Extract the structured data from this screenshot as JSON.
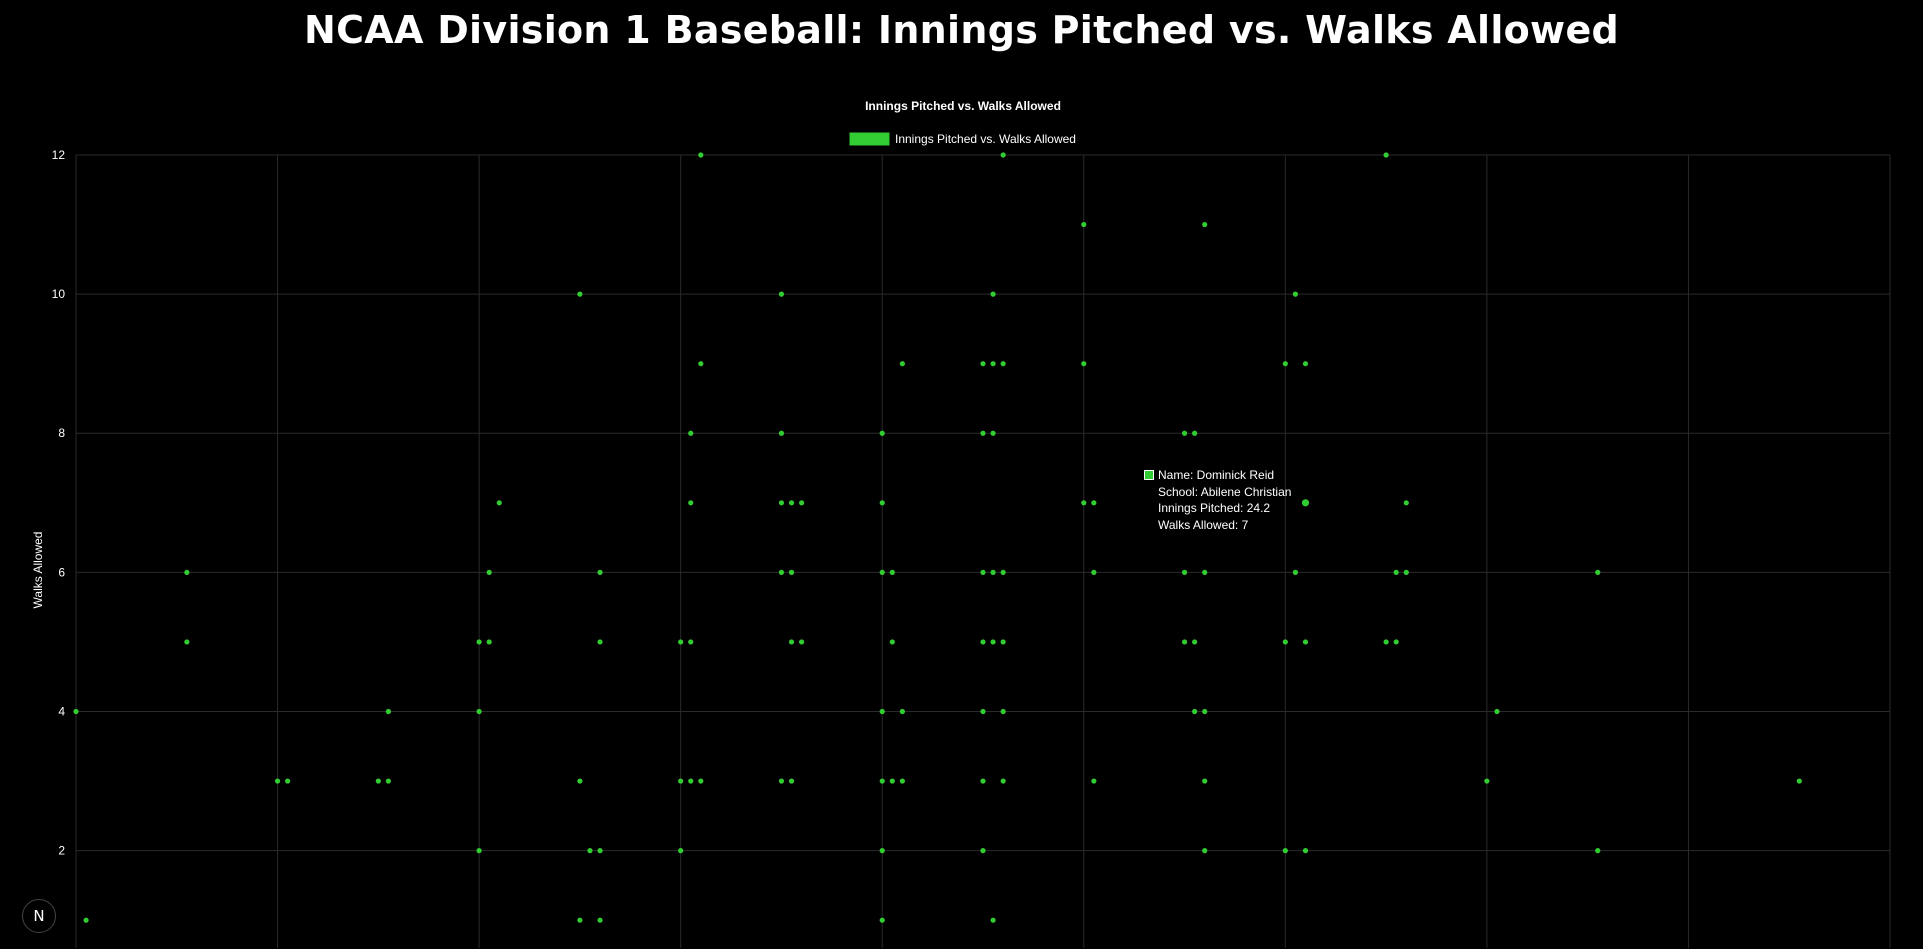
{
  "page": {
    "title": "NCAA Division 1 Baseball: Innings Pitched vs. Walks Allowed"
  },
  "badge": {
    "label": "N",
    "icon": "nextjs-logo-icon"
  },
  "colors": {
    "background": "#000000",
    "point": "#32cd32",
    "grid": "#2a2a2a",
    "text": "#ffffff"
  },
  "tooltip": {
    "name_line": "Name: Dominick Reid",
    "school_line": "School: Abilene Christian",
    "innings_line": "Innings Pitched: 24.2",
    "walks_line": "Walks Allowed: 7"
  },
  "chart_data": {
    "type": "scatter",
    "title": "Innings Pitched vs. Walks Allowed",
    "legend": {
      "label": "Innings Pitched vs. Walks Allowed",
      "position": "top"
    },
    "xlabel": "",
    "ylabel": "Walks Allowed",
    "xlim": [
      0,
      45
    ],
    "ylim": [
      0.6,
      12
    ],
    "yticks": [
      2,
      4,
      6,
      8,
      10,
      12
    ],
    "x_gridlines": [
      0,
      5,
      10,
      15,
      20,
      25,
      30,
      35,
      40,
      45
    ],
    "grid": true,
    "series": [
      {
        "name": "Innings Pitched vs. Walks Allowed",
        "points": [
          [
            0,
            4
          ],
          [
            0.25,
            1
          ],
          [
            2.75,
            6
          ],
          [
            2.75,
            5
          ],
          [
            5,
            3
          ],
          [
            5.25,
            3
          ],
          [
            7.5,
            3
          ],
          [
            7.75,
            3
          ],
          [
            7.75,
            4
          ],
          [
            10,
            5
          ],
          [
            10,
            4
          ],
          [
            10,
            2
          ],
          [
            10.25,
            6
          ],
          [
            10.25,
            5
          ],
          [
            10.5,
            7
          ],
          [
            12.5,
            10
          ],
          [
            12.5,
            3
          ],
          [
            12.75,
            2
          ],
          [
            12.5,
            1
          ],
          [
            13,
            6
          ],
          [
            13,
            5
          ],
          [
            13,
            2
          ],
          [
            13,
            1
          ],
          [
            15,
            5
          ],
          [
            15,
            3
          ],
          [
            15,
            2
          ],
          [
            15.25,
            8
          ],
          [
            15.25,
            7
          ],
          [
            15.25,
            5
          ],
          [
            15.25,
            3
          ],
          [
            15.5,
            12
          ],
          [
            15.5,
            9
          ],
          [
            15.5,
            3
          ],
          [
            17.5,
            10
          ],
          [
            17.5,
            8
          ],
          [
            17.5,
            7
          ],
          [
            17.5,
            6
          ],
          [
            17.5,
            3
          ],
          [
            17.75,
            7
          ],
          [
            17.75,
            6
          ],
          [
            17.75,
            5
          ],
          [
            17.75,
            3
          ],
          [
            18,
            7
          ],
          [
            18,
            5
          ],
          [
            20,
            8
          ],
          [
            20,
            7
          ],
          [
            20,
            6
          ],
          [
            20,
            4
          ],
          [
            20,
            3
          ],
          [
            20,
            2
          ],
          [
            20,
            1
          ],
          [
            20.25,
            6
          ],
          [
            20.25,
            5
          ],
          [
            20.25,
            3
          ],
          [
            20.5,
            9
          ],
          [
            20.5,
            4
          ],
          [
            20.5,
            3
          ],
          [
            22.5,
            9
          ],
          [
            22.5,
            8
          ],
          [
            22.5,
            6
          ],
          [
            22.5,
            5
          ],
          [
            22.5,
            4
          ],
          [
            22.5,
            3
          ],
          [
            22.5,
            2
          ],
          [
            22.75,
            10
          ],
          [
            22.75,
            9
          ],
          [
            22.75,
            8
          ],
          [
            22.75,
            6
          ],
          [
            22.75,
            5
          ],
          [
            22.75,
            1
          ],
          [
            23,
            12
          ],
          [
            23,
            9
          ],
          [
            23,
            6
          ],
          [
            23,
            5
          ],
          [
            23,
            4
          ],
          [
            23,
            3
          ],
          [
            25,
            11
          ],
          [
            25,
            9
          ],
          [
            25,
            7
          ],
          [
            25.25,
            7
          ],
          [
            25.25,
            6
          ],
          [
            25.25,
            3
          ],
          [
            27.5,
            8
          ],
          [
            27.5,
            6
          ],
          [
            27.5,
            5
          ],
          [
            27.75,
            8
          ],
          [
            27.75,
            5
          ],
          [
            27.75,
            4
          ],
          [
            28,
            11
          ],
          [
            28,
            6
          ],
          [
            28,
            4
          ],
          [
            28,
            3
          ],
          [
            28,
            2
          ],
          [
            30,
            9
          ],
          [
            30,
            5
          ],
          [
            30,
            2
          ],
          [
            30.25,
            10
          ],
          [
            30.25,
            6
          ],
          [
            30.5,
            9
          ],
          [
            30.5,
            7
          ],
          [
            30.5,
            5
          ],
          [
            30.5,
            2
          ],
          [
            32.5,
            12
          ],
          [
            32.5,
            5
          ],
          [
            32.75,
            6
          ],
          [
            32.75,
            5
          ],
          [
            33,
            7
          ],
          [
            33,
            6
          ],
          [
            35,
            3
          ],
          [
            35.25,
            4
          ],
          [
            37.75,
            6
          ],
          [
            37.75,
            2
          ],
          [
            42.75,
            3
          ]
        ]
      }
    ],
    "highlighted_point": [
      30.5,
      7
    ]
  }
}
